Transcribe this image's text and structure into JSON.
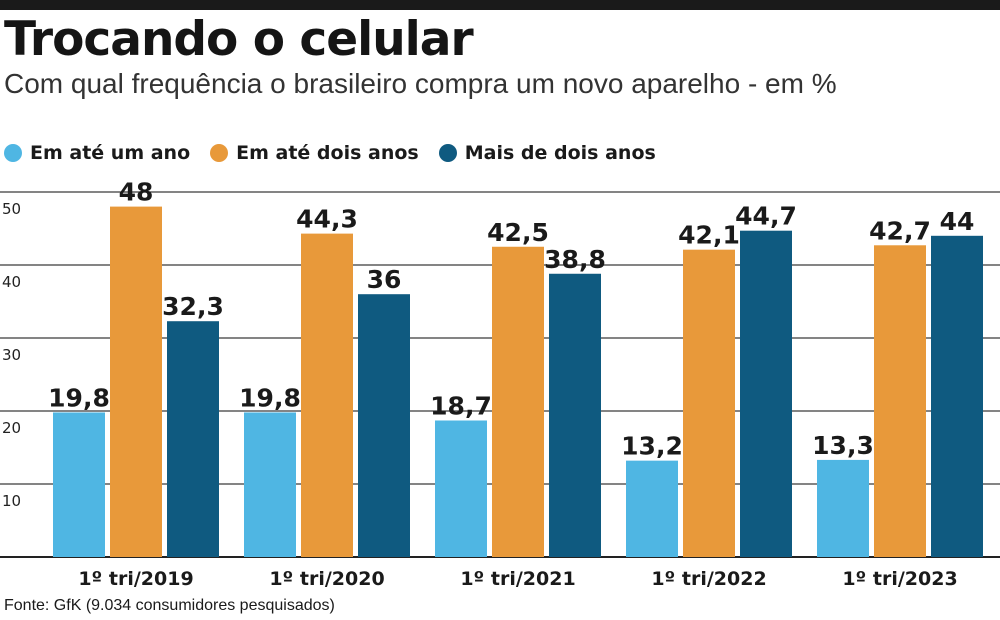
{
  "chart_data": {
    "type": "bar",
    "title": "Trocando o celular",
    "subtitle": "Com qual frequência o brasileiro compra um novo aparelho - em %",
    "categories": [
      "1º tri/2019",
      "1º tri/2020",
      "1º tri/2021",
      "1º tri/2022",
      "1º tri/2023"
    ],
    "series": [
      {
        "name": "Em até um ano",
        "color": "#4fb6e3",
        "values": [
          19.8,
          19.8,
          18.7,
          13.2,
          13.3
        ],
        "labels": [
          "19,8",
          "19,8",
          "18,7",
          "13,2",
          "13,3"
        ]
      },
      {
        "name": "Em até dois anos",
        "color": "#e8993a",
        "values": [
          48,
          44.3,
          42.5,
          42.1,
          42.7
        ],
        "labels": [
          "48",
          "44,3",
          "42,5",
          "42,1",
          "42,7"
        ]
      },
      {
        "name": "Mais de dois anos",
        "color": "#0f5a80",
        "values": [
          32.3,
          36,
          38.8,
          44.7,
          44
        ],
        "labels": [
          "32,3",
          "36",
          "38,8",
          "44,7",
          "44"
        ]
      }
    ],
    "yticks": [
      10,
      20,
      30,
      40,
      50
    ],
    "ylim": [
      0,
      50
    ],
    "grid": true,
    "legend": "top-left",
    "source": "Fonte: GfK (9.034 consumidores pesquisados)"
  }
}
